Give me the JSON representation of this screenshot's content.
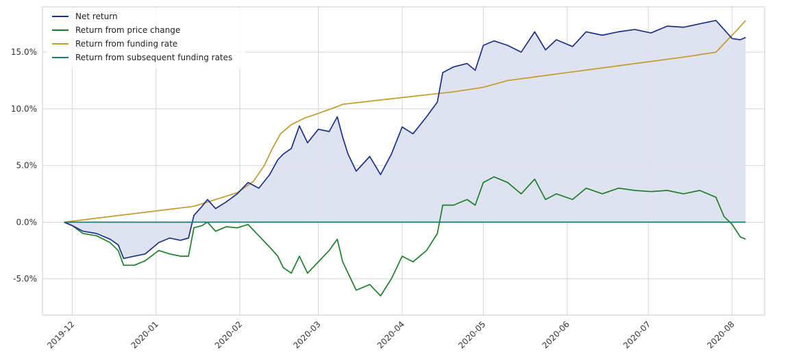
{
  "chart_data": {
    "type": "line",
    "title": "",
    "xlabel": "",
    "ylabel": "",
    "x_ticks": [
      "2019-12",
      "2020-01",
      "2020-02",
      "2020-03",
      "2020-04",
      "2020-05",
      "2020-06",
      "2020-07",
      "2020-08"
    ],
    "y_ticks": [
      "-5.0%",
      "0.0%",
      "5.0%",
      "10.0%",
      "15.0%"
    ],
    "y_tick_values": [
      -5,
      0,
      5,
      10,
      15
    ],
    "xlim": [
      "2019-11-20",
      "2020-08-13"
    ],
    "ylim": [
      -8.2,
      19.0
    ],
    "grid": true,
    "legend_position": "top-left",
    "colors": {
      "net": "#1a2f8a",
      "price": "#1b7f2a",
      "funding": "#c49a2c",
      "subsequent": "#197a7a",
      "fill": "#dde0ee"
    },
    "series": [
      {
        "name": "Net return",
        "key": "net",
        "fill": true,
        "points": [
          [
            "2019-11-28",
            0.0
          ],
          [
            "2019-12-01",
            -0.3
          ],
          [
            "2019-12-05",
            -0.8
          ],
          [
            "2019-12-10",
            -1.0
          ],
          [
            "2019-12-15",
            -1.5
          ],
          [
            "2019-12-18",
            -2.0
          ],
          [
            "2019-12-20",
            -3.2
          ],
          [
            "2019-12-24",
            -3.0
          ],
          [
            "2019-12-28",
            -2.8
          ],
          [
            "2020-01-02",
            -1.8
          ],
          [
            "2020-01-06",
            -1.4
          ],
          [
            "2020-01-10",
            -1.6
          ],
          [
            "2020-01-13",
            -1.4
          ],
          [
            "2020-01-15",
            0.6
          ],
          [
            "2020-01-18",
            1.4
          ],
          [
            "2020-01-20",
            2.0
          ],
          [
            "2020-01-23",
            1.2
          ],
          [
            "2020-01-27",
            1.8
          ],
          [
            "2020-01-31",
            2.5
          ],
          [
            "2020-02-04",
            3.5
          ],
          [
            "2020-02-08",
            3.0
          ],
          [
            "2020-02-12",
            4.2
          ],
          [
            "2020-02-15",
            5.5
          ],
          [
            "2020-02-17",
            6.0
          ],
          [
            "2020-02-20",
            6.5
          ],
          [
            "2020-02-23",
            8.5
          ],
          [
            "2020-02-26",
            7.0
          ],
          [
            "2020-03-01",
            8.2
          ],
          [
            "2020-03-05",
            8.0
          ],
          [
            "2020-03-08",
            9.3
          ],
          [
            "2020-03-10",
            7.5
          ],
          [
            "2020-03-12",
            6.0
          ],
          [
            "2020-03-15",
            4.5
          ],
          [
            "2020-03-20",
            5.8
          ],
          [
            "2020-03-24",
            4.2
          ],
          [
            "2020-03-28",
            6.0
          ],
          [
            "2020-04-01",
            8.4
          ],
          [
            "2020-04-05",
            7.8
          ],
          [
            "2020-04-10",
            9.3
          ],
          [
            "2020-04-14",
            10.6
          ],
          [
            "2020-04-16",
            13.2
          ],
          [
            "2020-04-20",
            13.7
          ],
          [
            "2020-04-25",
            14.0
          ],
          [
            "2020-04-28",
            13.4
          ],
          [
            "2020-05-01",
            15.6
          ],
          [
            "2020-05-05",
            16.0
          ],
          [
            "2020-05-10",
            15.6
          ],
          [
            "2020-05-15",
            15.0
          ],
          [
            "2020-05-20",
            16.8
          ],
          [
            "2020-05-24",
            15.2
          ],
          [
            "2020-05-28",
            16.1
          ],
          [
            "2020-06-03",
            15.5
          ],
          [
            "2020-06-08",
            16.8
          ],
          [
            "2020-06-14",
            16.5
          ],
          [
            "2020-06-20",
            16.8
          ],
          [
            "2020-06-26",
            17.0
          ],
          [
            "2020-07-02",
            16.7
          ],
          [
            "2020-07-08",
            17.3
          ],
          [
            "2020-07-14",
            17.2
          ],
          [
            "2020-07-20",
            17.5
          ],
          [
            "2020-07-26",
            17.8
          ],
          [
            "2020-07-29",
            17.0
          ],
          [
            "2020-08-01",
            16.2
          ],
          [
            "2020-08-04",
            16.1
          ],
          [
            "2020-08-06",
            16.3
          ]
        ]
      },
      {
        "name": "Return from price change",
        "key": "price",
        "points": [
          [
            "2019-11-28",
            0.0
          ],
          [
            "2019-12-01",
            -0.3
          ],
          [
            "2019-12-05",
            -1.0
          ],
          [
            "2019-12-10",
            -1.2
          ],
          [
            "2019-12-15",
            -1.8
          ],
          [
            "2019-12-18",
            -2.5
          ],
          [
            "2019-12-20",
            -3.8
          ],
          [
            "2019-12-24",
            -3.8
          ],
          [
            "2019-12-28",
            -3.4
          ],
          [
            "2020-01-02",
            -2.5
          ],
          [
            "2020-01-06",
            -2.8
          ],
          [
            "2020-01-10",
            -3.0
          ],
          [
            "2020-01-13",
            -3.0
          ],
          [
            "2020-01-15",
            -0.5
          ],
          [
            "2020-01-18",
            -0.3
          ],
          [
            "2020-01-20",
            0.0
          ],
          [
            "2020-01-23",
            -0.8
          ],
          [
            "2020-01-27",
            -0.4
          ],
          [
            "2020-01-31",
            -0.5
          ],
          [
            "2020-02-04",
            -0.2
          ],
          [
            "2020-02-08",
            -1.2
          ],
          [
            "2020-02-12",
            -2.2
          ],
          [
            "2020-02-15",
            -3.0
          ],
          [
            "2020-02-17",
            -4.0
          ],
          [
            "2020-02-20",
            -4.5
          ],
          [
            "2020-02-23",
            -3.0
          ],
          [
            "2020-02-26",
            -4.5
          ],
          [
            "2020-03-01",
            -3.5
          ],
          [
            "2020-03-05",
            -2.5
          ],
          [
            "2020-03-08",
            -1.5
          ],
          [
            "2020-03-10",
            -3.5
          ],
          [
            "2020-03-12",
            -4.5
          ],
          [
            "2020-03-15",
            -6.0
          ],
          [
            "2020-03-20",
            -5.5
          ],
          [
            "2020-03-24",
            -6.5
          ],
          [
            "2020-03-28",
            -5.0
          ],
          [
            "2020-04-01",
            -3.0
          ],
          [
            "2020-04-05",
            -3.5
          ],
          [
            "2020-04-10",
            -2.5
          ],
          [
            "2020-04-14",
            -1.0
          ],
          [
            "2020-04-16",
            1.5
          ],
          [
            "2020-04-20",
            1.5
          ],
          [
            "2020-04-25",
            2.0
          ],
          [
            "2020-04-28",
            1.5
          ],
          [
            "2020-05-01",
            3.5
          ],
          [
            "2020-05-05",
            4.0
          ],
          [
            "2020-05-10",
            3.5
          ],
          [
            "2020-05-15",
            2.5
          ],
          [
            "2020-05-20",
            3.8
          ],
          [
            "2020-05-24",
            2.0
          ],
          [
            "2020-05-28",
            2.5
          ],
          [
            "2020-06-03",
            2.0
          ],
          [
            "2020-06-08",
            3.0
          ],
          [
            "2020-06-14",
            2.5
          ],
          [
            "2020-06-20",
            3.0
          ],
          [
            "2020-06-26",
            2.8
          ],
          [
            "2020-07-02",
            2.7
          ],
          [
            "2020-07-08",
            2.8
          ],
          [
            "2020-07-14",
            2.5
          ],
          [
            "2020-07-20",
            2.8
          ],
          [
            "2020-07-26",
            2.2
          ],
          [
            "2020-07-29",
            0.5
          ],
          [
            "2020-08-01",
            -0.2
          ],
          [
            "2020-08-04",
            -1.3
          ],
          [
            "2020-08-06",
            -1.5
          ]
        ]
      },
      {
        "name": "Return from funding rate",
        "key": "funding",
        "points": [
          [
            "2019-11-28",
            0.0
          ],
          [
            "2020-01-15",
            1.4
          ],
          [
            "2020-01-31",
            2.6
          ],
          [
            "2020-02-06",
            3.6
          ],
          [
            "2020-02-10",
            5.0
          ],
          [
            "2020-02-13",
            6.5
          ],
          [
            "2020-02-16",
            7.8
          ],
          [
            "2020-02-20",
            8.6
          ],
          [
            "2020-02-25",
            9.2
          ],
          [
            "2020-03-01",
            9.6
          ],
          [
            "2020-03-08",
            10.2
          ],
          [
            "2020-03-10",
            10.4
          ],
          [
            "2020-04-01",
            11.0
          ],
          [
            "2020-04-20",
            11.5
          ],
          [
            "2020-05-01",
            11.9
          ],
          [
            "2020-05-10",
            12.5
          ],
          [
            "2020-06-01",
            13.2
          ],
          [
            "2020-06-20",
            13.8
          ],
          [
            "2020-07-15",
            14.6
          ],
          [
            "2020-07-26",
            15.0
          ],
          [
            "2020-07-30",
            16.0
          ],
          [
            "2020-08-03",
            17.0
          ],
          [
            "2020-08-06",
            17.8
          ]
        ]
      },
      {
        "name": "Return from subsequent funding rates",
        "key": "subsequent",
        "points": [
          [
            "2019-11-28",
            0.0
          ],
          [
            "2020-08-06",
            0.0
          ]
        ]
      }
    ]
  }
}
